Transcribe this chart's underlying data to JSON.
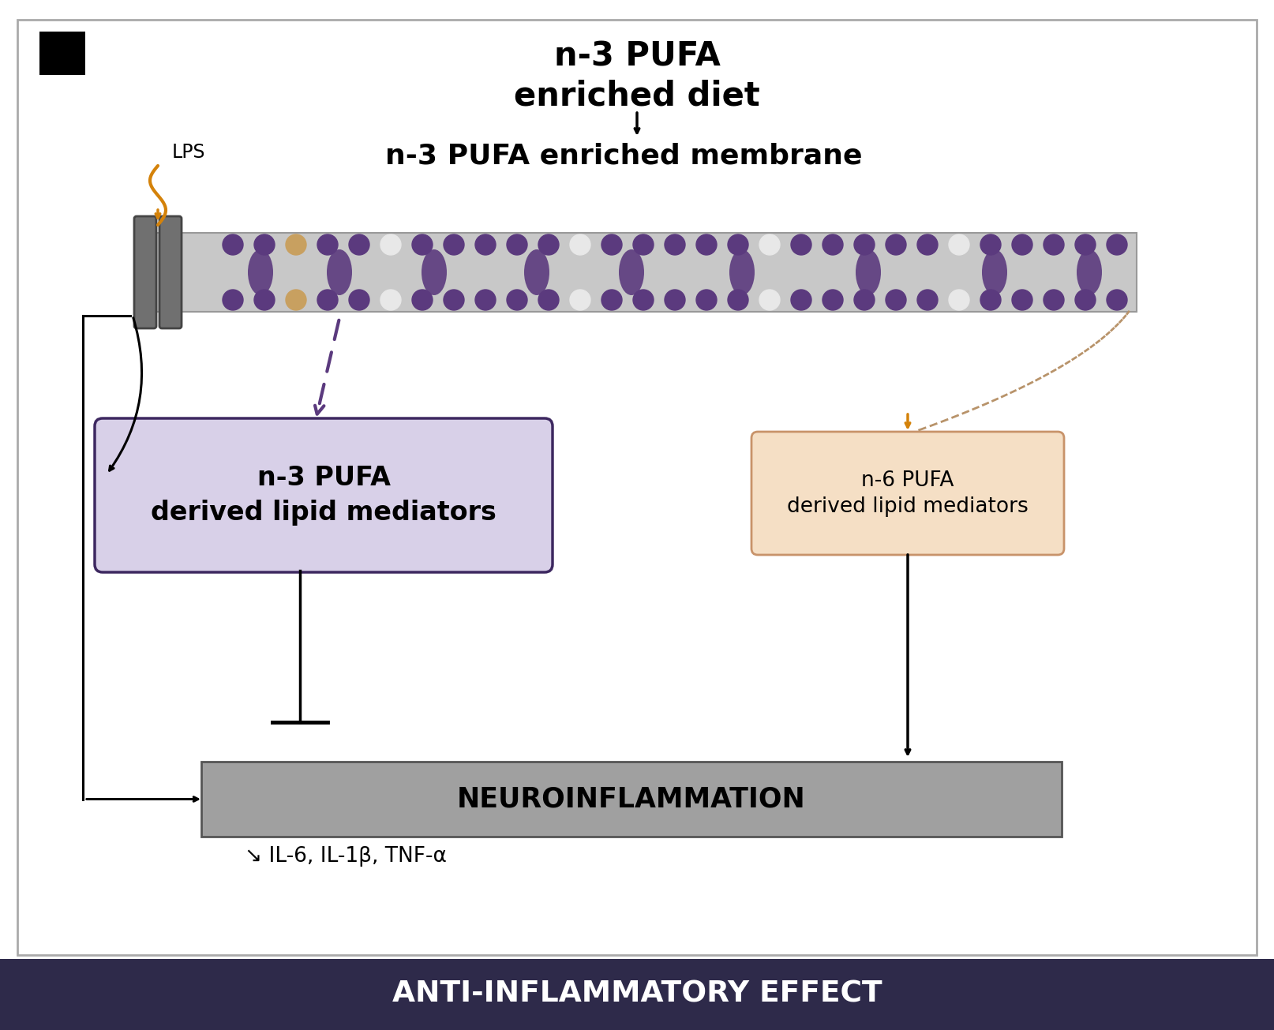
{
  "title_text": "n-3 PUFA\nenriched diet",
  "membrane_label": "n-3 PUFA enriched membrane",
  "lps_label": "LPS",
  "n3_box_label": "n-3 PUFA\nderived lipid mediators",
  "n6_box_label": "n-6 PUFA\nderived lipid mediators",
  "neuro_box_label": "NEUROINFLAMMATION",
  "cytokines_label": "↘ IL-6, IL-1β, TNF-α",
  "footer_label": "ANTI-INFLAMMATORY EFFECT",
  "background_color": "#ffffff",
  "footer_color": "#2e2a4a",
  "footer_text_color": "#ffffff",
  "n3_box_color": "#d8d0e8",
  "n6_box_color": "#f5dfc5",
  "neuro_box_color": "#a0a0a0",
  "membrane_body_color": "#c8c8c8",
  "purple": "#5b3a7e",
  "tan_color": "#c8a060",
  "orange_color": "#d4820a",
  "tan_arrow_color": "#b8936a",
  "border_color": "#888888",
  "receptor_color": "#707070"
}
